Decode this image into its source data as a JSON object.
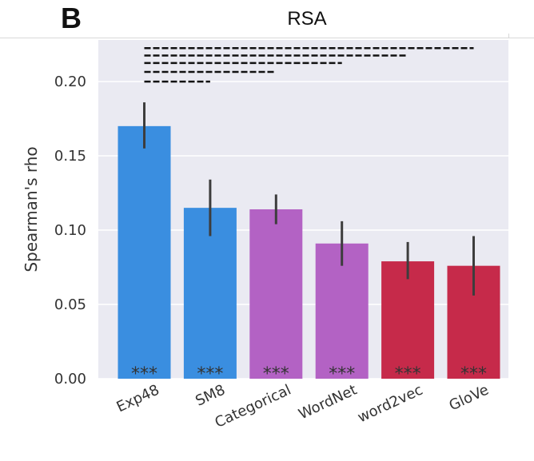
{
  "panel": {
    "label": "B"
  },
  "chart_data": {
    "type": "bar",
    "title": "RSA",
    "xlabel": "",
    "ylabel": "Spearman's rho",
    "ylim": [
      0,
      0.228
    ],
    "yticks": [
      0.0,
      0.05,
      0.1,
      0.15,
      0.2
    ],
    "ytick_labels": [
      "0.00",
      "0.05",
      "0.10",
      "0.15",
      "0.20"
    ],
    "grid": true,
    "categories": [
      "Exp48",
      "SM8",
      "Categorical",
      "WordNet",
      "word2vec",
      "GloVe"
    ],
    "values": [
      0.17,
      0.115,
      0.114,
      0.091,
      0.079,
      0.076
    ],
    "error_low": [
      0.155,
      0.096,
      0.104,
      0.076,
      0.067,
      0.056
    ],
    "error_high": [
      0.186,
      0.134,
      0.124,
      0.106,
      0.092,
      0.096
    ],
    "colors": [
      "#3a8ee0",
      "#3a8ee0",
      "#b362c4",
      "#b362c4",
      "#c62a4a",
      "#c62a4a"
    ],
    "significance": [
      "***",
      "***",
      "***",
      "***",
      "***",
      "***"
    ],
    "comparison_brackets": [
      {
        "from": "Exp48",
        "to": "GloVe",
        "y": 0.2225
      },
      {
        "from": "Exp48",
        "to": "word2vec",
        "y": 0.2175
      },
      {
        "from": "Exp48",
        "to": "WordNet",
        "y": 0.2125
      },
      {
        "from": "Exp48",
        "to": "Categorical",
        "y": 0.2065
      },
      {
        "from": "Exp48",
        "to": "SM8",
        "y": 0.2
      }
    ]
  }
}
